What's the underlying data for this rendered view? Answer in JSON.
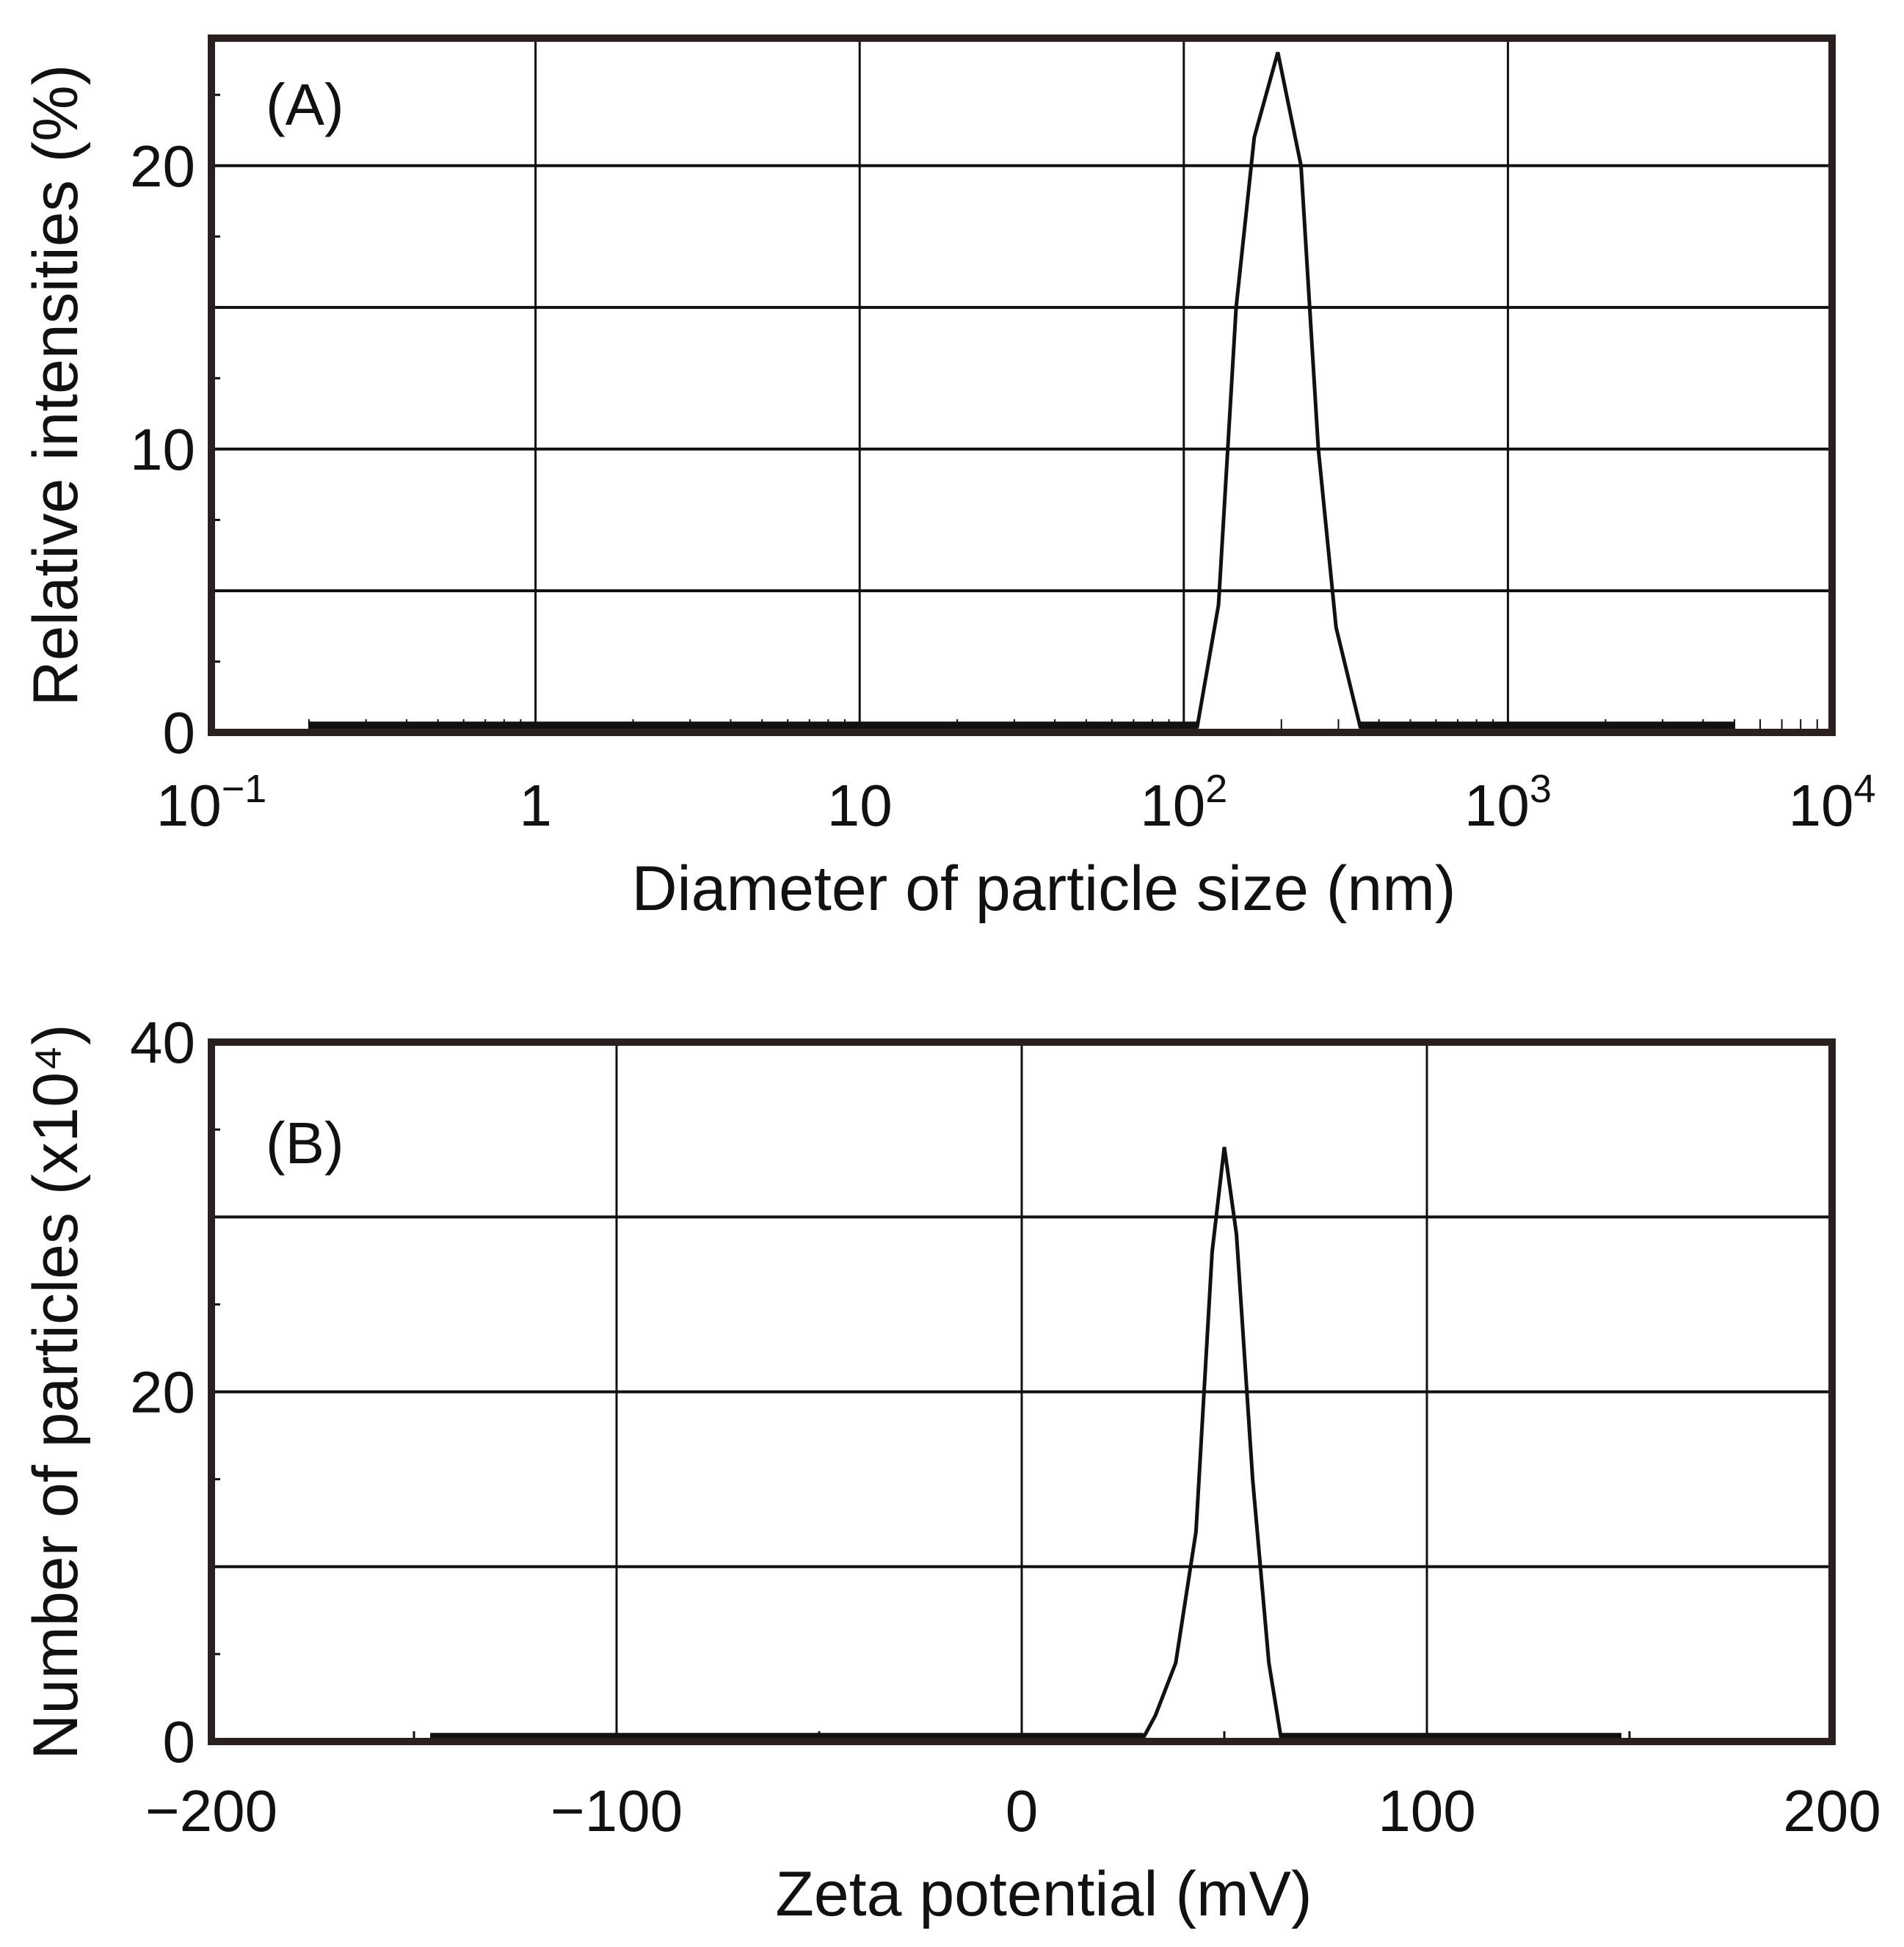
{
  "chart_data": [
    {
      "type": "line",
      "panel_label": "(A)",
      "xlabel": "Diameter of particle size (nm)",
      "ylabel": "Relative intensities (%)",
      "xscale": "log",
      "xlim": [
        0.1,
        10000
      ],
      "ylim": [
        0,
        24.5
      ],
      "grid": true,
      "xticks": [
        {
          "value": 0.1,
          "base": "10",
          "exp": "−1"
        },
        {
          "value": 1,
          "base": "1",
          "exp": ""
        },
        {
          "value": 10,
          "base": "10",
          "exp": ""
        },
        {
          "value": 100,
          "base": "10",
          "exp": "2"
        },
        {
          "value": 1000,
          "base": "10",
          "exp": "3"
        },
        {
          "value": 10000,
          "base": "10",
          "exp": "4"
        }
      ],
      "yticks": [
        0,
        10,
        20
      ],
      "ygrid": [
        5,
        10,
        15,
        20
      ],
      "series": [
        {
          "x": [
            0.2,
            110,
            128,
            145,
            165,
            195,
            230,
            260,
            295,
            350,
            5000
          ],
          "y": [
            0.2,
            0.2,
            4.5,
            15,
            21,
            24,
            20,
            10,
            3.7,
            0.2,
            0.2
          ]
        }
      ]
    },
    {
      "type": "line",
      "panel_label": "(B)",
      "xlabel": "Zeta potential (mV)",
      "ylabel": "Number of particles (x10⁴)",
      "xlim": [
        -200,
        200
      ],
      "ylim": [
        0,
        40
      ],
      "grid": true,
      "xticks": [
        -200,
        -100,
        0,
        100,
        200
      ],
      "xtick_labels": [
        "−200",
        "−100",
        "0",
        "100",
        "200"
      ],
      "yticks": [
        0,
        20,
        40
      ],
      "ygrid": [
        10,
        20,
        30
      ],
      "series": [
        {
          "x": [
            -146,
            30,
            33,
            38,
            43,
            47,
            50,
            53,
            57,
            61,
            64,
            148
          ],
          "y": [
            0.2,
            0.2,
            1.5,
            4.5,
            12,
            28,
            34,
            29,
            15,
            4.5,
            0.2,
            0.2
          ]
        }
      ]
    }
  ]
}
